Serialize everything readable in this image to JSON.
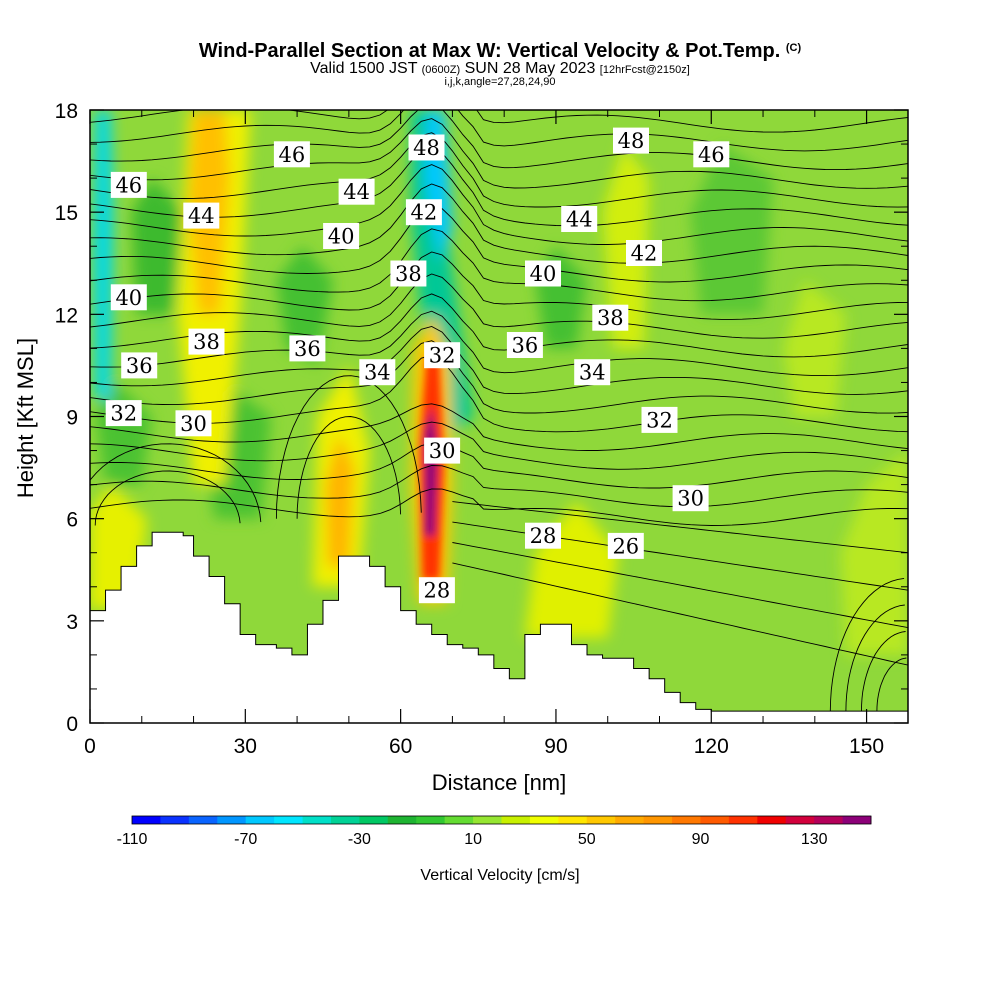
{
  "title": {
    "main": "Wind-Parallel Section at Max W: Vertical Velocity & Pot.Temp.",
    "mark": "(C)",
    "valid_a": "Valid 1500 JST",
    "valid_utc": "(0600Z)",
    "valid_b": "SUN 28 May 2023",
    "forecast": "[12hrFcst@2150z]",
    "indices": "i,j,k,angle=27,28,24,90"
  },
  "chart_data": {
    "type": "contour-section",
    "xlabel": "Distance [nm]",
    "ylabel": "Height [Kft MSL]",
    "xlim": [
      0,
      158
    ],
    "ylim": [
      0,
      18
    ],
    "x_ticks": [
      "0",
      "30",
      "60",
      "90",
      "120",
      "150"
    ],
    "y_ticks": [
      "0",
      "3",
      "6",
      "9",
      "12",
      "15",
      "18"
    ],
    "colorbar": {
      "label": "Vertical Velocity [cm/s]",
      "tick_labels": [
        "-110",
        "-70",
        "-30",
        "10",
        "50",
        "90",
        "130"
      ],
      "levels": [
        -110,
        -100,
        -90,
        -80,
        -70,
        -60,
        -50,
        -40,
        -30,
        -20,
        -10,
        0,
        10,
        20,
        30,
        40,
        50,
        60,
        70,
        80,
        90,
        100,
        110,
        120,
        130,
        140,
        150
      ],
      "colors": [
        "#0000ff",
        "#0a32ff",
        "#0a64ff",
        "#0096ff",
        "#00c8ff",
        "#00e6ff",
        "#00e0c8",
        "#00d296",
        "#00c864",
        "#1eb432",
        "#32c832",
        "#64dc32",
        "#96e632",
        "#c8f000",
        "#f0ff00",
        "#ffe600",
        "#ffc800",
        "#ffaa00",
        "#ff9600",
        "#ff7800",
        "#ff5a00",
        "#ff3200",
        "#f00000",
        "#d2003c",
        "#b4005a",
        "#8c0078"
      ]
    },
    "theta_contour_labels": [
      {
        "text": "46",
        "x": 7.5,
        "y": 15.8
      },
      {
        "text": "46",
        "x": 39,
        "y": 16.7
      },
      {
        "text": "48",
        "x": 65,
        "y": 16.9
      },
      {
        "text": "48",
        "x": 104.5,
        "y": 17.1
      },
      {
        "text": "46",
        "x": 120,
        "y": 16.7
      },
      {
        "text": "44",
        "x": 21.5,
        "y": 14.9
      },
      {
        "text": "44",
        "x": 51.5,
        "y": 15.6
      },
      {
        "text": "42",
        "x": 64.5,
        "y": 15.0
      },
      {
        "text": "44",
        "x": 94.5,
        "y": 14.8
      },
      {
        "text": "42",
        "x": 107,
        "y": 13.8
      },
      {
        "text": "40",
        "x": 48.5,
        "y": 14.3
      },
      {
        "text": "38",
        "x": 61.5,
        "y": 13.2
      },
      {
        "text": "40",
        "x": 87.5,
        "y": 13.2
      },
      {
        "text": "40",
        "x": 7.5,
        "y": 12.5
      },
      {
        "text": "38",
        "x": 100.5,
        "y": 11.9
      },
      {
        "text": "38",
        "x": 22.5,
        "y": 11.2
      },
      {
        "text": "36",
        "x": 42,
        "y": 11.0
      },
      {
        "text": "32",
        "x": 68,
        "y": 10.8
      },
      {
        "text": "36",
        "x": 84,
        "y": 11.1
      },
      {
        "text": "36",
        "x": 9.5,
        "y": 10.5
      },
      {
        "text": "34",
        "x": 55.5,
        "y": 10.3
      },
      {
        "text": "34",
        "x": 97,
        "y": 10.3
      },
      {
        "text": "32",
        "x": 6.5,
        "y": 9.1
      },
      {
        "text": "30",
        "x": 20,
        "y": 8.8
      },
      {
        "text": "32",
        "x": 110,
        "y": 8.9
      },
      {
        "text": "30",
        "x": 68,
        "y": 8.0
      },
      {
        "text": "30",
        "x": 116,
        "y": 6.6
      },
      {
        "text": "28",
        "x": 87.5,
        "y": 5.5
      },
      {
        "text": "26",
        "x": 103.5,
        "y": 5.2
      },
      {
        "text": "28",
        "x": 67,
        "y": 3.9
      }
    ],
    "terrain_kft": [
      [
        0,
        3.3
      ],
      [
        3,
        3.3
      ],
      [
        3,
        3.9
      ],
      [
        6,
        3.9
      ],
      [
        6,
        4.6
      ],
      [
        9,
        4.6
      ],
      [
        9,
        5.2
      ],
      [
        12,
        5.2
      ],
      [
        12,
        5.6
      ],
      [
        15,
        5.6
      ],
      [
        18,
        5.6
      ],
      [
        18,
        5.5
      ],
      [
        20,
        5.5
      ],
      [
        20,
        4.9
      ],
      [
        23,
        4.9
      ],
      [
        23,
        4.3
      ],
      [
        26,
        4.3
      ],
      [
        26,
        3.5
      ],
      [
        29,
        3.5
      ],
      [
        29,
        2.6
      ],
      [
        32,
        2.6
      ],
      [
        32,
        2.3
      ],
      [
        36,
        2.3
      ],
      [
        36,
        2.2
      ],
      [
        39,
        2.2
      ],
      [
        39,
        2.0
      ],
      [
        42,
        2.0
      ],
      [
        42,
        2.9
      ],
      [
        45,
        2.9
      ],
      [
        45,
        3.6
      ],
      [
        48,
        3.6
      ],
      [
        48,
        4.9
      ],
      [
        54,
        4.9
      ],
      [
        54,
        4.6
      ],
      [
        57,
        4.6
      ],
      [
        57,
        4.0
      ],
      [
        60,
        4.0
      ],
      [
        60,
        3.3
      ],
      [
        63,
        3.3
      ],
      [
        63,
        2.9
      ],
      [
        66,
        2.9
      ],
      [
        66,
        2.6
      ],
      [
        69,
        2.6
      ],
      [
        69,
        2.3
      ],
      [
        72,
        2.3
      ],
      [
        72,
        2.2
      ],
      [
        75,
        2.2
      ],
      [
        75,
        2.0
      ],
      [
        78,
        2.0
      ],
      [
        78,
        1.6
      ],
      [
        81,
        1.6
      ],
      [
        81,
        1.3
      ],
      [
        84,
        1.3
      ],
      [
        84,
        2.6
      ],
      [
        87,
        2.6
      ],
      [
        87,
        2.9
      ],
      [
        93,
        2.9
      ],
      [
        93,
        2.3
      ],
      [
        96,
        2.3
      ],
      [
        96,
        2.0
      ],
      [
        99,
        2.0
      ],
      [
        99,
        1.9
      ],
      [
        105,
        1.9
      ],
      [
        105,
        1.6
      ],
      [
        108,
        1.6
      ],
      [
        108,
        1.3
      ],
      [
        111,
        1.3
      ],
      [
        111,
        0.9
      ],
      [
        114,
        0.9
      ],
      [
        114,
        0.6
      ],
      [
        117,
        0.6
      ],
      [
        117,
        0.4
      ],
      [
        120,
        0.4
      ],
      [
        120,
        0.35
      ],
      [
        158,
        0.35
      ]
    ]
  }
}
